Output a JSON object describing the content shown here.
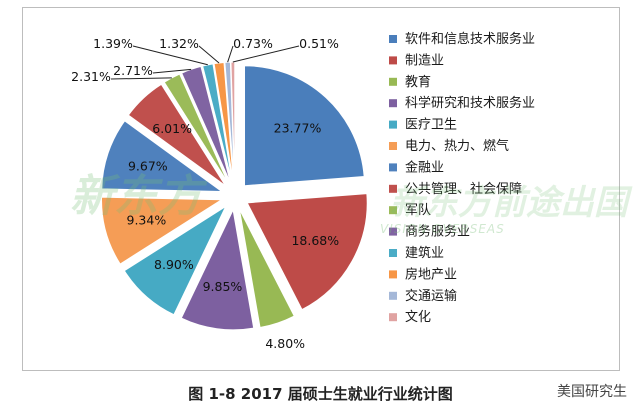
{
  "chart_data": {
    "type": "pie",
    "categories": [
      "软件和信息技术服务业",
      "制造业",
      "教育",
      "科学研究和技术服务业",
      "医疗卫生",
      "电力、热力、燃气",
      "金融业",
      "公共管理、社会保障",
      "军队",
      "商务服务业",
      "建筑业",
      "房地产业",
      "交通运输",
      "文化"
    ],
    "values": [
      23.77,
      18.68,
      4.8,
      9.85,
      8.9,
      9.34,
      9.67,
      6.01,
      2.31,
      2.71,
      1.39,
      1.32,
      0.73,
      0.51
    ],
    "labels": [
      "23.77%",
      "18.68%",
      "4.80%",
      "9.85%",
      "8.90%",
      "9.34%",
      "9.67%",
      "6.01%",
      "2.31%",
      "2.71%",
      "1.39%",
      "1.32%",
      "0.73%",
      "0.51%"
    ],
    "colors": [
      "#4a7ebb",
      "#be4b48",
      "#98b954",
      "#7d60a0",
      "#46aac4",
      "#f59d56",
      "#4f81bd",
      "#c0504d",
      "#9bbb59",
      "#8064a2",
      "#4bacc6",
      "#f79646",
      "#a5b8d8",
      "#e0a3a2"
    ],
    "legend_position": "right"
  },
  "watermarks": {
    "left": "新东方",
    "right": "新东方前途出国",
    "right_sub": "VISION OVERSEAS"
  },
  "caption": "图 1-8    2017 届硕士生就业行业统计图",
  "stamp": "美国研究生"
}
